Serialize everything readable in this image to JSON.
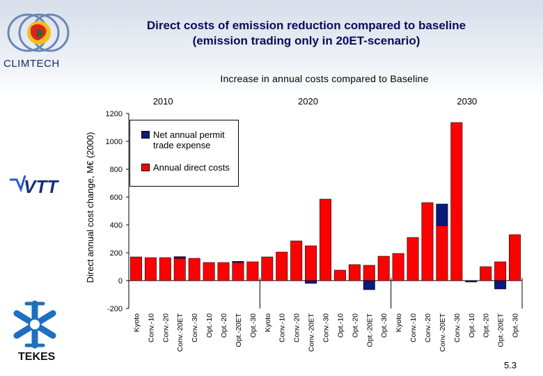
{
  "header": {
    "title_line1": "Direct costs of emission reduction compared to baseline",
    "title_line2": "(emission trading only in 20ET-scenario)"
  },
  "logos": {
    "climtech": "CLIMTECH",
    "vtt": "VTT",
    "tekes": "TEKES"
  },
  "page_number": "5.3",
  "colors": {
    "direct": "#ff0000",
    "permit": "#0a1a7a",
    "separator": "#000000"
  },
  "chart_data": {
    "type": "bar",
    "stacked": true,
    "title": "Increase in annual costs compared to Baseline",
    "ylabel": "Direct annual cost change, M€ (2000)",
    "ylim": [
      -200,
      1200
    ],
    "yticks": [
      -200,
      0,
      200,
      400,
      600,
      800,
      1000,
      1200
    ],
    "groups": [
      "2010",
      "2020",
      "2030"
    ],
    "categories": [
      "Kyoto",
      "Conv.-10",
      "Conv.-20",
      "Conv.-20ET",
      "Conv.-30",
      "Opt.-10",
      "Opt.-20",
      "Opt.-20ET",
      "Opt.-30"
    ],
    "legend": {
      "permit": "Net annual permit trade expense",
      "direct": "Annual direct costs"
    },
    "series": [
      {
        "name": "Annual direct costs",
        "values": [
          [
            170,
            165,
            165,
            160,
            160,
            130,
            130,
            130,
            135
          ],
          [
            170,
            205,
            285,
            250,
            585,
            75,
            115,
            110,
            175
          ],
          [
            195,
            310,
            560,
            395,
            1135,
            0,
            100,
            135,
            330
          ]
        ]
      },
      {
        "name": "Net annual permit trade expense",
        "values": [
          [
            0,
            0,
            0,
            12,
            0,
            0,
            0,
            8,
            0
          ],
          [
            0,
            0,
            0,
            -20,
            0,
            0,
            0,
            -65,
            0
          ],
          [
            0,
            0,
            0,
            155,
            0,
            -10,
            0,
            -60,
            0
          ]
        ]
      }
    ]
  }
}
